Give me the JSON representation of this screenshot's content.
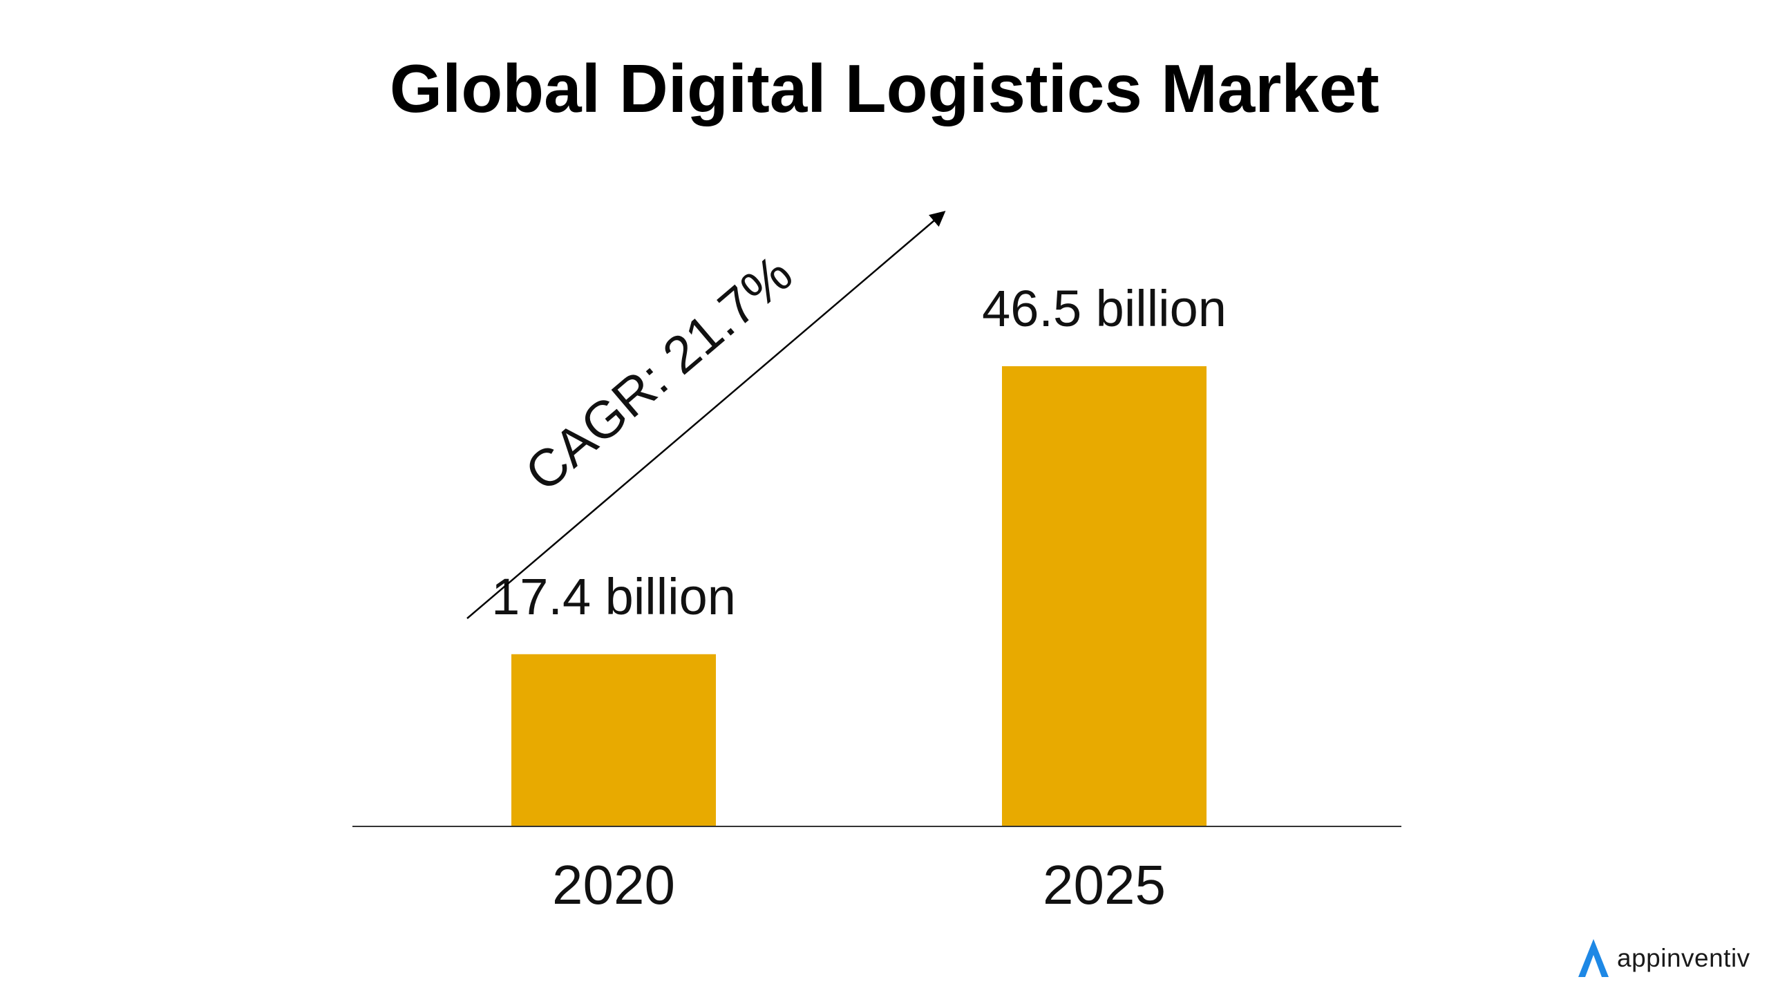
{
  "chart_data": {
    "type": "bar",
    "title": "Global Digital Logistics Market",
    "categories": [
      "2020",
      "2025"
    ],
    "values": [
      17.4,
      46.5
    ],
    "data_labels": [
      "17.4 billion",
      "46.5 billion"
    ],
    "xlabel": "",
    "ylabel": "",
    "ylim": [
      0,
      50
    ],
    "grid": false,
    "legend": "none",
    "bar_color": "#E8AA00",
    "annotations": [
      {
        "text": "CAGR: 21.7%",
        "type": "arrow",
        "direction": "up-right"
      }
    ]
  },
  "branding": {
    "logo_icon": "appinventiv-logo-icon",
    "name": "appinventiv",
    "logo_color": "#1E88E5"
  }
}
